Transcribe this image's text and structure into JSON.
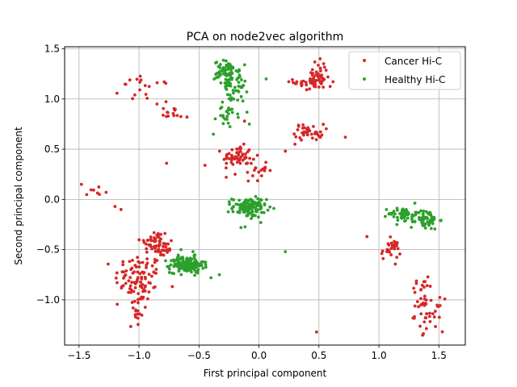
{
  "chart_data": {
    "type": "scatter",
    "title": "PCA on node2vec algorithm",
    "xlabel": "First principal component",
    "ylabel": "Second principal component",
    "xlim": [
      -1.62,
      1.72
    ],
    "ylim": [
      -1.45,
      1.52
    ],
    "xticks": [
      -1.5,
      -1.0,
      -0.5,
      0.0,
      0.5,
      1.0,
      1.5
    ],
    "xtick_labels": [
      "−1.5",
      "−1.0",
      "−0.5",
      "0.0",
      "0.5",
      "1.0",
      "1.5"
    ],
    "yticks": [
      -1.0,
      -0.5,
      0.0,
      0.5,
      1.0,
      1.5
    ],
    "ytick_labels": [
      "−1.0",
      "−0.5",
      "0.0",
      "0.5",
      "1.0",
      "1.5"
    ],
    "grid": true,
    "legend_position": "top-right",
    "series": [
      {
        "name": "Cancer Hi-C",
        "color": "#d62728",
        "clusters": [
          {
            "center": [
              -1.0,
              -0.78
            ],
            "spread": [
              0.1,
              0.12
            ],
            "n": 90
          },
          {
            "center": [
              -1.02,
              -1.1
            ],
            "spread": [
              0.04,
              0.12
            ],
            "n": 20
          },
          {
            "center": [
              -0.87,
              -0.42
            ],
            "spread": [
              0.06,
              0.06
            ],
            "n": 40
          },
          {
            "center": [
              -0.8,
              -0.5
            ],
            "spread": [
              0.04,
              0.04
            ],
            "n": 25
          },
          {
            "center": [
              -0.18,
              0.43
            ],
            "spread": [
              0.06,
              0.05
            ],
            "n": 55
          },
          {
            "center": [
              -0.05,
              0.3
            ],
            "spread": [
              0.06,
              0.06
            ],
            "n": 25
          },
          {
            "center": [
              0.45,
              1.17
            ],
            "spread": [
              0.08,
              0.05
            ],
            "n": 45
          },
          {
            "center": [
              0.5,
              1.28
            ],
            "spread": [
              0.04,
              0.06
            ],
            "n": 20
          },
          {
            "center": [
              0.42,
              0.67
            ],
            "spread": [
              0.06,
              0.04
            ],
            "n": 40
          },
          {
            "center": [
              1.1,
              -0.5
            ],
            "spread": [
              0.04,
              0.05
            ],
            "n": 30
          },
          {
            "center": [
              1.35,
              -0.95
            ],
            "spread": [
              0.05,
              0.1
            ],
            "n": 25
          },
          {
            "center": [
              1.42,
              -1.15
            ],
            "spread": [
              0.06,
              0.08
            ],
            "n": 30
          },
          {
            "center": [
              -0.95,
              1.1
            ],
            "spread": [
              0.1,
              0.06
            ],
            "n": 18
          },
          {
            "center": [
              -0.72,
              0.88
            ],
            "spread": [
              0.08,
              0.05
            ],
            "n": 14
          },
          {
            "center": [
              -1.38,
              0.08
            ],
            "spread": [
              0.06,
              0.04
            ],
            "n": 6
          }
        ],
        "points": [
          [
            -0.77,
            0.36
          ],
          [
            0.48,
            -1.32
          ],
          [
            0.9,
            -0.37
          ],
          [
            -0.45,
            0.34
          ],
          [
            0.72,
            0.62
          ],
          [
            -1.2,
            -0.07
          ],
          [
            -1.15,
            -0.1
          ],
          [
            -0.12,
            0.78
          ],
          [
            0.22,
            0.48
          ],
          [
            0.3,
            0.55
          ],
          [
            -0.85,
            0.95
          ],
          [
            -0.6,
            0.82
          ],
          [
            -1.48,
            0.15
          ],
          [
            -1.33,
            0.05
          ]
        ]
      },
      {
        "name": "Healthy Hi-C",
        "color": "#2ca02c",
        "clusters": [
          {
            "center": [
              -0.27,
              1.26
            ],
            "spread": [
              0.05,
              0.06
            ],
            "n": 70
          },
          {
            "center": [
              -0.2,
              1.12
            ],
            "spread": [
              0.05,
              0.08
            ],
            "n": 35
          },
          {
            "center": [
              -0.25,
              0.88
            ],
            "spread": [
              0.05,
              0.08
            ],
            "n": 25
          },
          {
            "center": [
              -0.08,
              -0.08
            ],
            "spread": [
              0.07,
              0.05
            ],
            "n": 120
          },
          {
            "center": [
              -0.6,
              -0.65
            ],
            "spread": [
              0.07,
              0.04
            ],
            "n": 160
          },
          {
            "center": [
              1.2,
              -0.14
            ],
            "spread": [
              0.06,
              0.03
            ],
            "n": 40
          },
          {
            "center": [
              1.38,
              -0.2
            ],
            "spread": [
              0.06,
              0.05
            ],
            "n": 70
          }
        ],
        "points": [
          [
            0.06,
            1.2
          ],
          [
            0.22,
            -0.52
          ],
          [
            -0.38,
            0.65
          ],
          [
            -0.08,
            0.75
          ],
          [
            -0.65,
            -0.5
          ],
          [
            -0.4,
            -0.78
          ],
          [
            -0.33,
            -0.75
          ],
          [
            -0.15,
            -0.28
          ],
          [
            1.15,
            -0.25
          ],
          [
            -0.55,
            -0.52
          ]
        ]
      }
    ]
  }
}
